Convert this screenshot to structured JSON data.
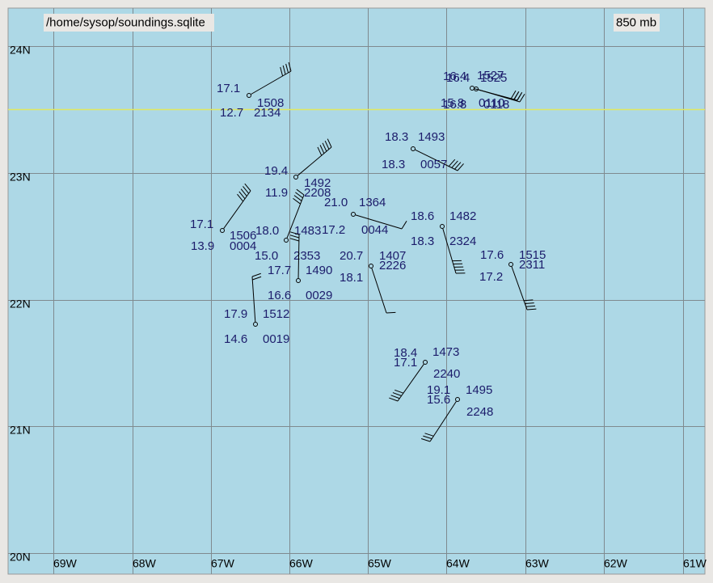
{
  "header": {
    "source": "/home/sysop/soundings.sqlite",
    "level": "850 mb"
  },
  "axes": {
    "latitudes": [
      "24N",
      "23N",
      "22N",
      "21N",
      "20N"
    ],
    "longitudes": [
      "69W",
      "68W",
      "67W",
      "66W",
      "65W",
      "64W",
      "63W",
      "62W",
      "61W"
    ]
  },
  "stations": [
    {
      "temperature": "17.1",
      "height": "1508",
      "dewpoint": "12.7",
      "time": "2134"
    },
    {
      "temperature": "16.4",
      "height": "1527",
      "dewpoint": "15.8",
      "time": "0110"
    },
    {
      "temperature": "16.4",
      "height": "1525",
      "dewpoint": "16.8",
      "time": "0118"
    },
    {
      "temperature": "18.3",
      "height": "1493",
      "dewpoint": "18.3",
      "time": "0057"
    },
    {
      "temperature": "19.4",
      "height": "1492",
      "dewpoint": "11.9",
      "time": "2208"
    },
    {
      "temperature": "17.1",
      "height": "1506",
      "dewpoint": "13.9",
      "time": "0004"
    },
    {
      "temperature": "18.0",
      "height": "1483",
      "dewpoint": "15.0",
      "time": "2353"
    },
    {
      "temperature": "21.0",
      "height": "1364",
      "dewpoint": "17.2",
      "time": "0044"
    },
    {
      "temperature": "18.6",
      "height": "1482",
      "dewpoint": "18.3",
      "time": "2324"
    },
    {
      "temperature": "17.7",
      "height": "1490",
      "dewpoint": "16.6",
      "time": "0029"
    },
    {
      "temperature": "20.7",
      "height": "1407",
      "dewpoint": "18.1",
      "time": "2226"
    },
    {
      "temperature": "17.6",
      "height": "1515",
      "dewpoint": "17.2",
      "time": "2311"
    },
    {
      "temperature": "17.9",
      "height": "1512",
      "dewpoint": "14.6",
      "time": "0019"
    },
    {
      "temperature": "18.4",
      "height": "1473",
      "dewpoint": "17.1",
      "time": "2240"
    },
    {
      "temperature": "19.1",
      "height": "1495",
      "dewpoint": "15.6",
      "time": "2248"
    }
  ]
}
